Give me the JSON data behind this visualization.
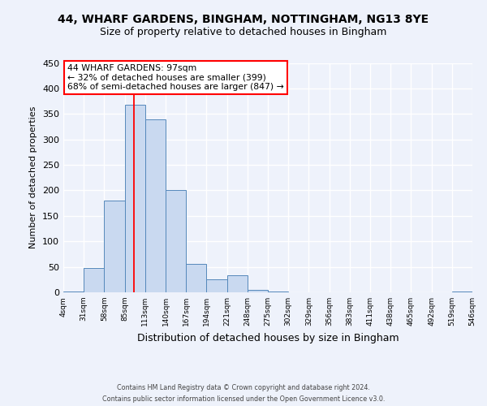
{
  "title": "44, WHARF GARDENS, BINGHAM, NOTTINGHAM, NG13 8YE",
  "subtitle": "Size of property relative to detached houses in Bingham",
  "xlabel": "Distribution of detached houses by size in Bingham",
  "ylabel": "Number of detached properties",
  "bin_edges": [
    4,
    31,
    58,
    85,
    112,
    139,
    166,
    193,
    220,
    247,
    274,
    301,
    328,
    355,
    382,
    409,
    436,
    463,
    490,
    517,
    544
  ],
  "bin_labels": [
    "4sqm",
    "31sqm",
    "58sqm",
    "85sqm",
    "113sqm",
    "140sqm",
    "167sqm",
    "194sqm",
    "221sqm",
    "248sqm",
    "275sqm",
    "302sqm",
    "329sqm",
    "356sqm",
    "383sqm",
    "411sqm",
    "438sqm",
    "465sqm",
    "492sqm",
    "519sqm",
    "546sqm"
  ],
  "bar_heights": [
    2,
    48,
    180,
    368,
    340,
    200,
    55,
    25,
    33,
    5,
    2,
    0,
    0,
    0,
    0,
    0,
    0,
    0,
    0,
    2
  ],
  "bar_color": "#c9d9f0",
  "bar_edge_color": "#5588bb",
  "red_line_x": 97,
  "annotation_text_line1": "44 WHARF GARDENS: 97sqm",
  "annotation_text_line2": "← 32% of detached houses are smaller (399)",
  "annotation_text_line3": "68% of semi-detached houses are larger (847) →",
  "ylim": [
    0,
    450
  ],
  "yticks": [
    0,
    50,
    100,
    150,
    200,
    250,
    300,
    350,
    400,
    450
  ],
  "footer_line1": "Contains HM Land Registry data © Crown copyright and database right 2024.",
  "footer_line2": "Contains public sector information licensed under the Open Government Licence v3.0.",
  "bg_color": "#eef2fb",
  "title_fontsize": 10,
  "subtitle_fontsize": 9
}
